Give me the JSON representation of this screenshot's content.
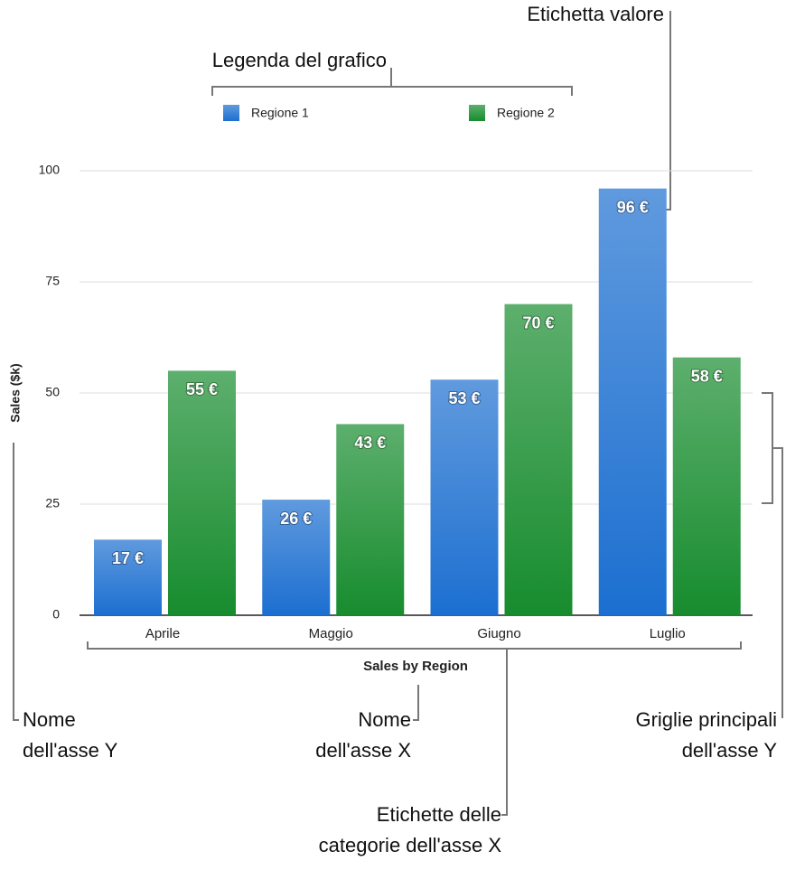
{
  "chart_data": {
    "type": "bar",
    "y_label": "Sales ($k)",
    "x_label": "Sales by Region",
    "categories": [
      "Aprile",
      "Maggio",
      "Giugno",
      "Luglio"
    ],
    "series": [
      {
        "name": "Regione 1",
        "color": "#1c6fd0",
        "values": [
          17,
          26,
          53,
          96
        ],
        "value_labels": [
          "17 €",
          "26 €",
          "53 €",
          "96 €"
        ]
      },
      {
        "name": "Regione 2",
        "color": "#178c2e",
        "values": [
          55,
          43,
          70,
          58
        ],
        "value_labels": [
          "55 €",
          "43 €",
          "70 €",
          "58 €"
        ]
      }
    ],
    "ylim": [
      0,
      100
    ],
    "yticks": [
      0,
      25,
      50,
      75,
      100
    ],
    "grid": true,
    "legend": "top",
    "annotations": [
      {
        "lines": [
          "Etichetta valore"
        ]
      },
      {
        "lines": [
          "Legenda del grafico"
        ]
      },
      {
        "lines": [
          "Nome",
          "dell'asse Y"
        ]
      },
      {
        "lines": [
          "Nome",
          "dell'asse X"
        ]
      },
      {
        "lines": [
          "Griglie principali",
          "dell'asse Y"
        ]
      },
      {
        "lines": [
          "Etichette delle",
          "categorie dell'asse X"
        ]
      }
    ]
  }
}
